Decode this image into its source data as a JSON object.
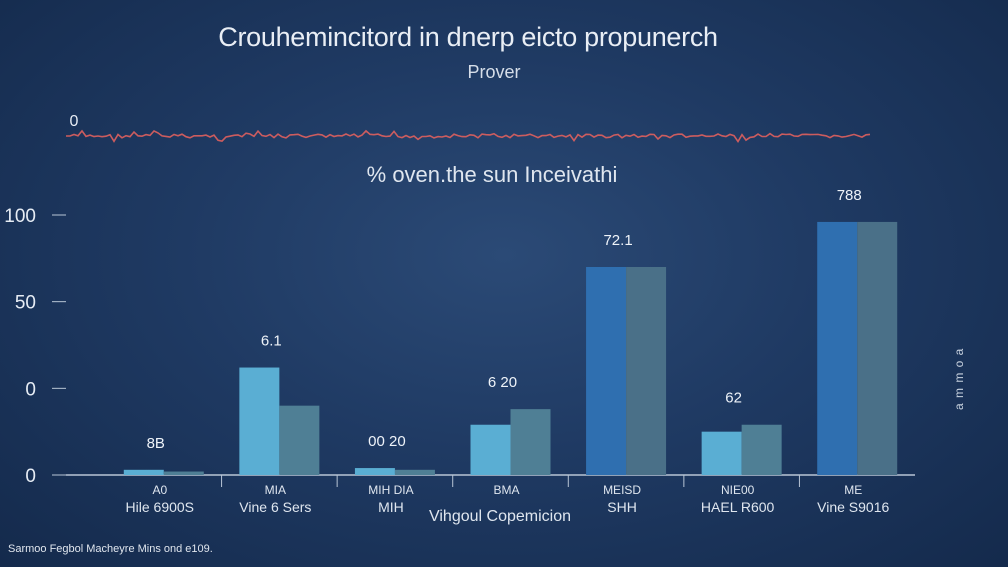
{
  "chart_data": {
    "type": "bar",
    "title": "Crouhemincitord in dnerp eicto propunerch",
    "subtitle": "Prover",
    "subtitle2": "% oven.the sun Inceivathi",
    "xlabel": "Vihgoul Copemicion",
    "ylabel_right": "a m m o a",
    "source": "Sarmoo Fegbol Macheyre Mins ond e109.",
    "yticks": [
      "100",
      "50",
      "0",
      "0"
    ],
    "ytick_values": [
      100,
      50,
      0,
      -50
    ],
    "ylim": [
      -50,
      100
    ],
    "sparkline_label": "0",
    "categories": [
      "A0",
      "MIA",
      "MIH DIA",
      "BMA",
      "MEISD",
      "NIE00",
      "ME"
    ],
    "category_sublabels": [
      "Hile 6900S",
      "Vine 6 Sers",
      "MIH",
      "",
      "SHH",
      "HAEL R600",
      "Vine S9016"
    ],
    "bar_labels": [
      "8B",
      "6.1",
      "00 20",
      "6 20",
      "72.1",
      "62",
      "788"
    ],
    "series": [
      {
        "values": [
          -47,
          12,
          -46,
          -21,
          70,
          -25,
          96
        ]
      },
      {
        "values": [
          -48,
          -10,
          -47,
          -12,
          70,
          -21,
          96
        ]
      }
    ],
    "colors": {
      "series_a": "#5aaed3",
      "series_b": "#4f7f95",
      "series_a_alt": "#2f6fb0",
      "series_b_alt": "#4a7088",
      "sparkline": "#e0605e",
      "axis": "#b9c6d6"
    }
  }
}
